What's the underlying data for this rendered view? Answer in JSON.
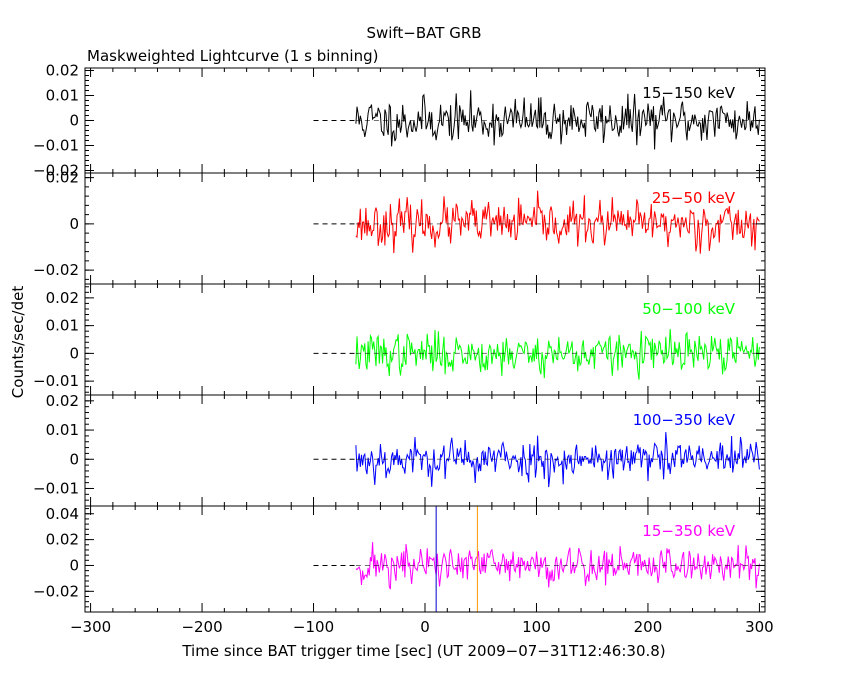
{
  "chart_data": {
    "type": "line",
    "title": "Swift−BAT GRB",
    "subtitle": "Maskweighted Lightcurve (1 s binning)",
    "xlabel": "Time since BAT trigger time [sec] (UT 2009−07−31T12:46:30.8)",
    "ylabel": "Counts/sec/det",
    "xlim": [
      -305,
      305
    ],
    "x_ticks": [
      -300,
      -200,
      -100,
      0,
      100,
      200,
      300
    ],
    "x_tick_labels": [
      "−300",
      "−200",
      "−100",
      "0",
      "100",
      "200",
      "300"
    ],
    "data_range": [
      -62,
      300
    ],
    "trigger_marker_x": 10,
    "peak_marker_x": 47,
    "panels": [
      {
        "label": "15−150 keV",
        "color": "#000000",
        "ylim": [
          -0.021,
          0.021
        ],
        "y_ticks": [
          -0.02,
          -0.01,
          0,
          0.01,
          0.02
        ],
        "y_tick_labels": [
          "−0.02",
          "−0.01",
          "0",
          "0.01",
          "0.02"
        ],
        "noise_sigma": 0.0052,
        "seed": 11
      },
      {
        "label": "25−50 keV",
        "color": "#ff0000",
        "ylim": [
          -0.026,
          0.022
        ],
        "y_ticks": [
          -0.02,
          0,
          0.02
        ],
        "y_tick_labels": [
          "−0.02",
          "0",
          "0.02"
        ],
        "noise_sigma": 0.0055,
        "seed": 23
      },
      {
        "label": "50−100 keV",
        "color": "#00ff00",
        "ylim": [
          -0.015,
          0.025
        ],
        "y_ticks": [
          -0.01,
          0,
          0.01,
          0.02
        ],
        "y_tick_labels": [
          "−0.01",
          "0",
          "0.01",
          "0.02"
        ],
        "noise_sigma": 0.0042,
        "seed": 37
      },
      {
        "label": "100−350 keV",
        "color": "#0000ff",
        "ylim": [
          -0.016,
          0.022
        ],
        "y_ticks": [
          -0.01,
          0,
          0.01,
          0.02
        ],
        "y_tick_labels": [
          "−0.01",
          "0",
          "0.01",
          "0.02"
        ],
        "noise_sigma": 0.004,
        "seed": 53
      },
      {
        "label": "15−350 keV",
        "color": "#ff00ff",
        "ylim": [
          -0.036,
          0.046
        ],
        "y_ticks": [
          -0.02,
          0,
          0.02,
          0.04
        ],
        "y_tick_labels": [
          "−0.02",
          "0",
          "0.02",
          "0.04"
        ],
        "noise_sigma": 0.009,
        "seed": 71
      }
    ]
  }
}
